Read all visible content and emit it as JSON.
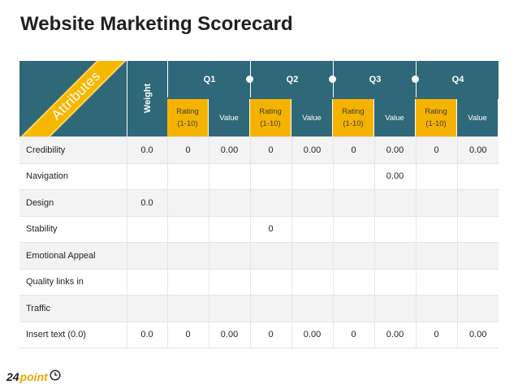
{
  "title": "Website Marketing Scorecard",
  "ribbon_label": "Attributes",
  "weight_label": "Weight",
  "quarters": [
    "Q1",
    "Q2",
    "Q3",
    "Q4"
  ],
  "subheaders": [
    {
      "label": "Rating\n(1-10)",
      "kind": "rating"
    },
    {
      "label": "Value",
      "kind": "value"
    },
    {
      "label": "Rating\n(1-10)",
      "kind": "rating"
    },
    {
      "label": "Value",
      "kind": "value"
    },
    {
      "label": "Rating\n(1-10)",
      "kind": "rating"
    },
    {
      "label": "Value",
      "kind": "value"
    },
    {
      "label": "Rating\n(1-10)",
      "kind": "rating"
    },
    {
      "label": "Value",
      "kind": "value"
    }
  ],
  "rows": [
    {
      "label": "Credibility",
      "cells": [
        "0.0",
        "0",
        "0.00",
        "0",
        "0.00",
        "0",
        "0.00",
        "0",
        "0.00"
      ]
    },
    {
      "label": "Navigation",
      "cells": [
        "",
        "",
        "",
        "",
        "",
        "",
        "0.00",
        "",
        ""
      ]
    },
    {
      "label": "Design",
      "cells": [
        "0.0",
        "",
        "",
        "",
        "",
        "",
        "",
        "",
        ""
      ]
    },
    {
      "label": "Stability",
      "cells": [
        "",
        "",
        "",
        "0",
        "",
        "",
        "",
        "",
        ""
      ]
    },
    {
      "label": "Emotional Appeal",
      "cells": [
        "",
        "",
        "",
        "",
        "",
        "",
        "",
        "",
        ""
      ]
    },
    {
      "label": "Quality links in",
      "cells": [
        "",
        "",
        "",
        "",
        "",
        "",
        "",
        "",
        ""
      ]
    },
    {
      "label": "Traffic",
      "cells": [
        "",
        "",
        "",
        "",
        "",
        "",
        "",
        "",
        ""
      ]
    },
    {
      "label": "Insert text (0.0)",
      "cells": [
        "0.0",
        "0",
        "0.00",
        "0",
        "0.00",
        "0",
        "0.00",
        "0",
        "0.00"
      ]
    }
  ],
  "logo": {
    "number": "24",
    "word": "point",
    "icon": "clock-icon"
  },
  "colors": {
    "header": "#2f6879",
    "rating": "#f5b300",
    "ribbon": "#f7b700"
  }
}
